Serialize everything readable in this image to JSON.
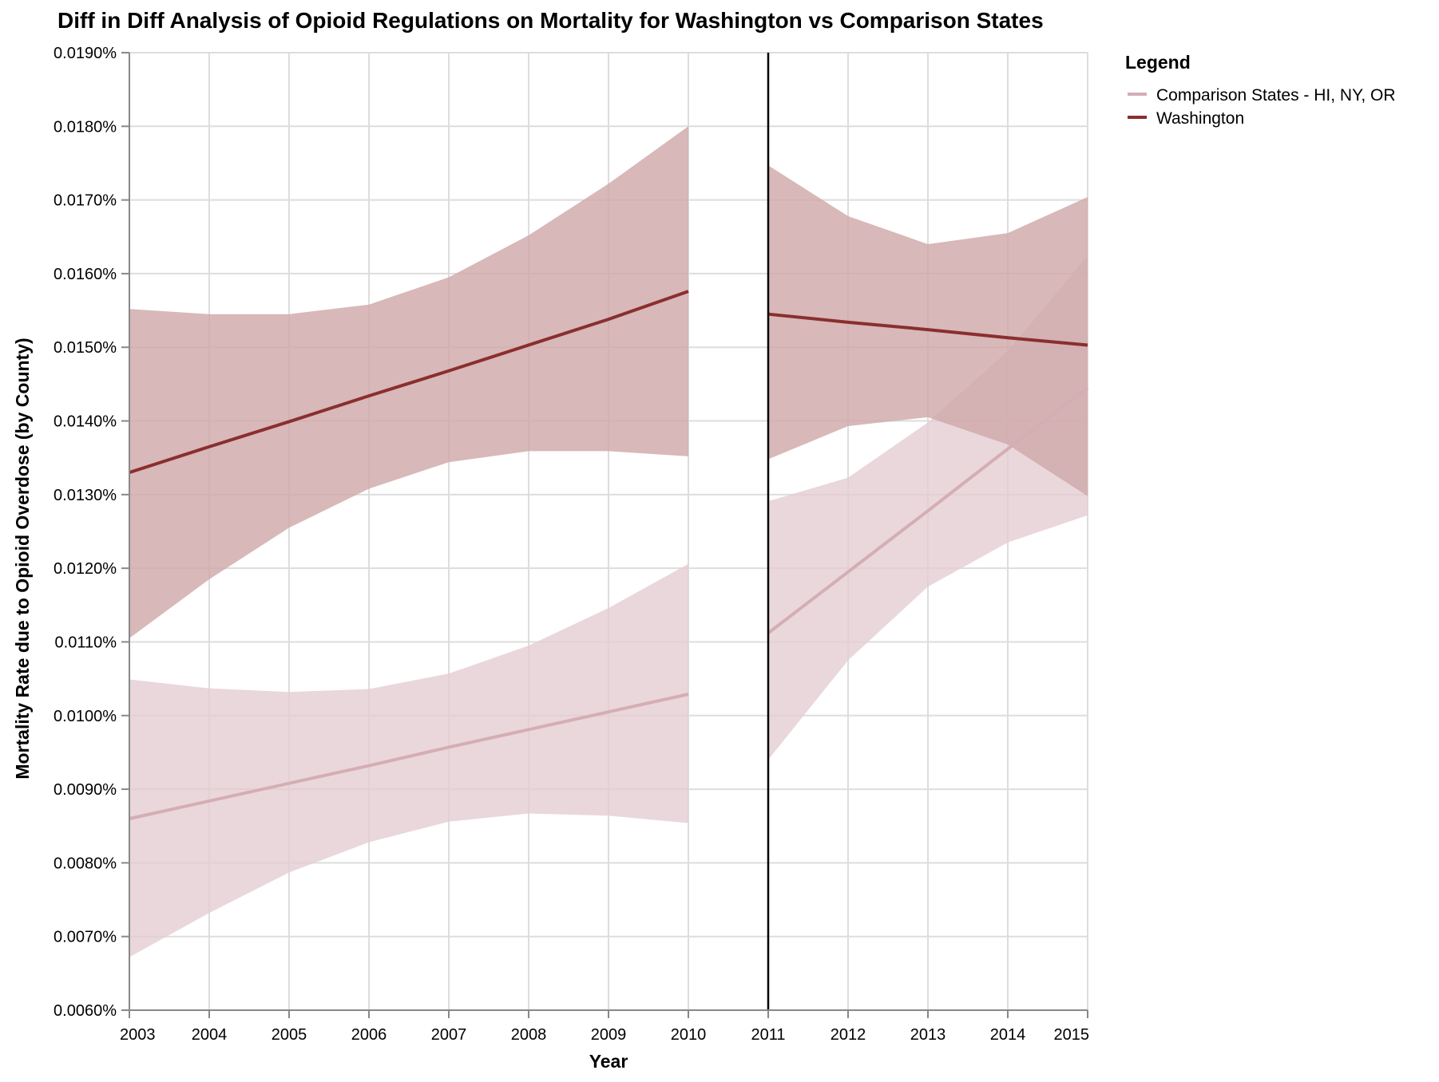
{
  "chart_data": {
    "type": "line",
    "title": "Diff in Diff Analysis of Opioid Regulations on Mortality for Washington vs Comparison States",
    "xlabel": "Year",
    "ylabel": "Mortality Rate due to Opioid Overdose (by County)",
    "xlim": [
      2003,
      2015
    ],
    "ylim": [
      0.006,
      0.019
    ],
    "x_ticks": [
      "2003",
      "2004",
      "2005",
      "2006",
      "2007",
      "2008",
      "2009",
      "2010",
      "2011",
      "2012",
      "2013",
      "2014",
      "2015"
    ],
    "y_ticks": [
      "0.0060%",
      "0.0070%",
      "0.0080%",
      "0.0090%",
      "0.0100%",
      "0.0110%",
      "0.0120%",
      "0.0130%",
      "0.0140%",
      "0.0150%",
      "0.0160%",
      "0.0170%",
      "0.0180%",
      "0.0190%"
    ],
    "y_tick_values": [
      0.006,
      0.007,
      0.008,
      0.009,
      0.01,
      0.011,
      0.012,
      0.013,
      0.014,
      0.015,
      0.016,
      0.017,
      0.018,
      0.019
    ],
    "grid": true,
    "policy_line_x": 2011,
    "legend": {
      "title": "Legend",
      "position": "top-right"
    },
    "series": [
      {
        "name": "Comparison States - HI, NY, OR",
        "color": "#d4aeb4",
        "band_color": "#e4ccd1",
        "segments": [
          {
            "x": [
              2003,
              2004,
              2005,
              2006,
              2007,
              2008,
              2009,
              2010
            ],
            "y": [
              0.0086,
              0.00884,
              0.00908,
              0.00932,
              0.00957,
              0.00981,
              0.01005,
              0.01029
            ],
            "lower": [
              0.00672,
              0.00732,
              0.00787,
              0.00828,
              0.00856,
              0.00867,
              0.00864,
              0.00854
            ],
            "upper": [
              0.01049,
              0.01037,
              0.01032,
              0.01036,
              0.01057,
              0.01095,
              0.01146,
              0.01206
            ]
          },
          {
            "x": [
              2011,
              2012,
              2013,
              2014,
              2015
            ],
            "y": [
              0.01112,
              0.01195,
              0.01278,
              0.01362,
              0.01445
            ],
            "lower": [
              0.0094,
              0.01075,
              0.01175,
              0.01235,
              0.01272
            ],
            "upper": [
              0.01291,
              0.01323,
              0.01398,
              0.01495,
              0.01624
            ]
          }
        ]
      },
      {
        "name": "Washington",
        "color": "#8b2e2e",
        "band_color": "#d0a8a8",
        "segments": [
          {
            "x": [
              2003,
              2004,
              2005,
              2006,
              2007,
              2008,
              2009,
              2010
            ],
            "y": [
              0.0133,
              0.01365,
              0.01399,
              0.01434,
              0.01468,
              0.01503,
              0.01538,
              0.01576
            ],
            "lower": [
              0.01105,
              0.01185,
              0.01255,
              0.01308,
              0.01344,
              0.01359,
              0.01359,
              0.01352
            ],
            "upper": [
              0.01552,
              0.01545,
              0.01545,
              0.01558,
              0.01595,
              0.01652,
              0.01722,
              0.018
            ]
          },
          {
            "x": [
              2011,
              2012,
              2013,
              2014,
              2015
            ],
            "y": [
              0.01545,
              0.01534,
              0.01524,
              0.01513,
              0.01503
            ],
            "lower": [
              0.01348,
              0.01393,
              0.01405,
              0.01368,
              0.01298
            ],
            "upper": [
              0.01747,
              0.01678,
              0.0164,
              0.01655,
              0.01704
            ]
          }
        ]
      }
    ]
  }
}
